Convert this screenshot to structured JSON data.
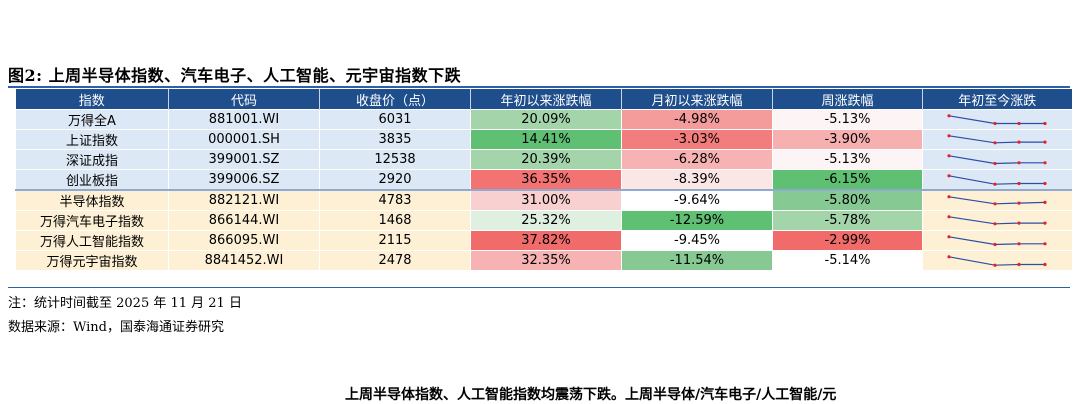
{
  "figure": {
    "title": "图2:  上周半导体指数、汽车电子、人工智能、元宇宙指数下跌"
  },
  "table": {
    "headers": [
      "指数",
      "代码",
      "收盘价（点）",
      "年初以来涨跌幅",
      "月初以来涨跌幅",
      "周涨跌幅",
      "年初至今涨跌"
    ],
    "rows": [
      {
        "name": "万得全A",
        "code": "881001.WI",
        "close": "6031",
        "ytd": "20.09%",
        "mtd": "-4.98%",
        "wk": "-5.13%",
        "group": "a",
        "ytd_color": "#a3d4aa",
        "mtd_color": "#f49b9b",
        "wk_color": "#fdf5f5",
        "spark": [
          0.2,
          0.75,
          0.75,
          0.75
        ]
      },
      {
        "name": "上证指数",
        "code": "000001.SH",
        "close": "3835",
        "ytd": "14.41%",
        "mtd": "-3.03%",
        "wk": "-3.90%",
        "group": "a",
        "ytd_color": "#5fbf73",
        "mtd_color": "#f37c7c",
        "wk_color": "#f7b0b0",
        "spark": [
          0.2,
          0.7,
          0.65,
          0.65
        ]
      },
      {
        "name": "深证成指",
        "code": "399001.SZ",
        "close": "12538",
        "ytd": "20.39%",
        "mtd": "-6.28%",
        "wk": "-5.13%",
        "group": "a",
        "ytd_color": "#a3d4aa",
        "mtd_color": "#f7b3b3",
        "wk_color": "#fdf5f5",
        "spark": [
          0.2,
          0.75,
          0.7,
          0.7
        ]
      },
      {
        "name": "创业板指",
        "code": "399006.SZ",
        "close": "2920",
        "ytd": "36.35%",
        "mtd": "-8.39%",
        "wk": "-6.15%",
        "group": "a",
        "ytd_color": "#f37373",
        "mtd_color": "#fbe6e6",
        "wk_color": "#5fbf73",
        "spark": [
          0.2,
          0.8,
          0.75,
          0.75
        ]
      },
      {
        "name": "半导体指数",
        "code": "882121.WI",
        "close": "4783",
        "ytd": "31.00%",
        "mtd": "-9.64%",
        "wk": "-5.80%",
        "group": "b",
        "ytd_color": "#f9d0d0",
        "mtd_color": "#ffffff",
        "wk_color": "#86c992",
        "spark": [
          0.2,
          0.7,
          0.65,
          0.6
        ]
      },
      {
        "name": "万得汽车电子指数",
        "code": "866144.WI",
        "close": "1468",
        "ytd": "25.32%",
        "mtd": "-12.59%",
        "wk": "-5.78%",
        "group": "b",
        "ytd_color": "#dff0e1",
        "mtd_color": "#5fbf73",
        "wk_color": "#a3d4aa",
        "spark": [
          0.2,
          0.7,
          0.65,
          0.65
        ]
      },
      {
        "name": "万得人工智能指数",
        "code": "866095.WI",
        "close": "2115",
        "ytd": "37.82%",
        "mtd": "-9.45%",
        "wk": "-2.99%",
        "group": "b",
        "ytd_color": "#f26b6b",
        "mtd_color": "#ffffff",
        "wk_color": "#f26b6b",
        "spark": [
          0.2,
          0.75,
          0.7,
          0.7
        ]
      },
      {
        "name": "万得元宇宙指数",
        "code": "8841452.WI",
        "close": "2478",
        "ytd": "32.35%",
        "mtd": "-11.54%",
        "wk": "-5.14%",
        "group": "b",
        "ytd_color": "#f7b3b3",
        "mtd_color": "#86c992",
        "wk_color": "#ffffff",
        "spark": [
          0.2,
          0.8,
          0.75,
          0.75
        ]
      }
    ]
  },
  "notes": {
    "note1": "注：统计时间截至 2025 年 11 月 21 日",
    "note2": "数据来源：Wind，国泰海通证券研究"
  },
  "bottom_text": "上周半导体指数、人工智能指数均震荡下跌。上周半导体/汽车电子/人工智能/元"
}
